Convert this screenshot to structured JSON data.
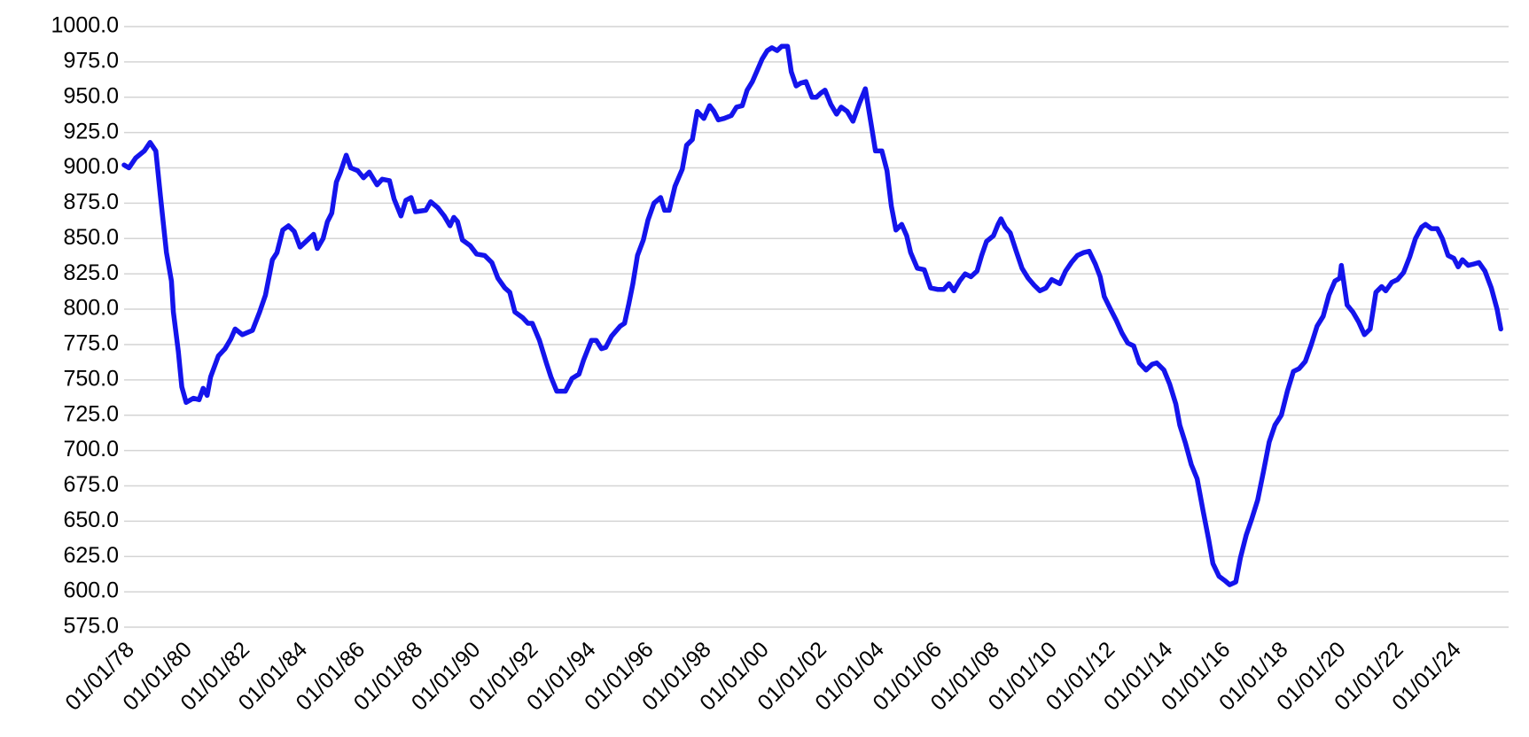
{
  "chart_data": {
    "type": "line",
    "x": [
      1978.0,
      1978.17,
      1978.4,
      1978.7,
      1978.9,
      1979.1,
      1979.26,
      1979.47,
      1979.64,
      1979.71,
      1979.88,
      1980.0,
      1980.15,
      1980.4,
      1980.6,
      1980.74,
      1980.88,
      1981.0,
      1981.27,
      1981.5,
      1981.7,
      1981.85,
      1982.1,
      1982.45,
      1982.7,
      1982.9,
      1983.14,
      1983.3,
      1983.5,
      1983.7,
      1983.9,
      1984.1,
      1984.36,
      1984.57,
      1984.7,
      1984.9,
      1985.05,
      1985.2,
      1985.36,
      1985.5,
      1985.7,
      1985.86,
      1986.1,
      1986.3,
      1986.5,
      1986.77,
      1986.95,
      1987.2,
      1987.36,
      1987.6,
      1987.77,
      1987.95,
      1988.1,
      1988.46,
      1988.63,
      1988.87,
      1989.1,
      1989.3,
      1989.43,
      1989.56,
      1989.73,
      1990.0,
      1990.22,
      1990.5,
      1990.75,
      1990.96,
      1991.2,
      1991.37,
      1991.55,
      1991.82,
      1992.0,
      1992.15,
      1992.4,
      1992.64,
      1992.8,
      1993.0,
      1993.3,
      1993.53,
      1993.77,
      1993.93,
      1994.2,
      1994.37,
      1994.55,
      1994.7,
      1994.9,
      1995.2,
      1995.35,
      1995.5,
      1995.64,
      1995.8,
      1996.0,
      1996.16,
      1996.37,
      1996.6,
      1996.74,
      1996.9,
      1997.1,
      1997.35,
      1997.5,
      1997.7,
      1997.87,
      1998.1,
      1998.3,
      1998.45,
      1998.6,
      1998.8,
      1999.05,
      1999.23,
      1999.43,
      1999.6,
      1999.78,
      1999.95,
      2000.12,
      2000.3,
      2000.46,
      2000.64,
      2000.8,
      2001.0,
      2001.13,
      2001.3,
      2001.46,
      2001.64,
      2001.85,
      2002.0,
      2002.16,
      2002.3,
      2002.5,
      2002.7,
      2002.86,
      2003.07,
      2003.27,
      2003.5,
      2003.7,
      2003.9,
      2004.05,
      2004.27,
      2004.45,
      2004.6,
      2004.76,
      2004.96,
      2005.13,
      2005.27,
      2005.5,
      2005.74,
      2005.96,
      2006.2,
      2006.42,
      2006.6,
      2006.77,
      2006.97,
      2007.16,
      2007.36,
      2007.57,
      2007.73,
      2007.9,
      2008.14,
      2008.3,
      2008.4,
      2008.55,
      2008.72,
      2008.93,
      2009.13,
      2009.34,
      2009.55,
      2009.75,
      2009.96,
      2010.16,
      2010.44,
      2010.64,
      2010.84,
      2011.05,
      2011.26,
      2011.46,
      2011.67,
      2011.84,
      2011.98,
      2012.2,
      2012.4,
      2012.6,
      2012.8,
      2013.0,
      2013.2,
      2013.43,
      2013.64,
      2013.8,
      2014.05,
      2014.25,
      2014.46,
      2014.6,
      2014.8,
      2015.0,
      2015.2,
      2015.4,
      2015.6,
      2015.75,
      2015.96,
      2016.16,
      2016.33,
      2016.54,
      2016.7,
      2016.9,
      2017.1,
      2017.3,
      2017.5,
      2017.7,
      2017.9,
      2018.12,
      2018.33,
      2018.54,
      2018.74,
      2018.95,
      2019.16,
      2019.36,
      2019.57,
      2019.77,
      2019.98,
      2020.15,
      2020.2,
      2020.4,
      2020.6,
      2020.8,
      2021.0,
      2021.2,
      2021.4,
      2021.6,
      2021.74,
      2021.95,
      2022.15,
      2022.36,
      2022.57,
      2022.77,
      2022.98,
      2023.12,
      2023.32,
      2023.53,
      2023.7,
      2023.9,
      2024.1,
      2024.25,
      2024.4,
      2024.6,
      2024.8,
      2024.97,
      2025.18,
      2025.4,
      2025.6,
      2025.73
    ],
    "series": [
      {
        "color": "#1414ec",
        "values": [
          902,
          900,
          907,
          912,
          918,
          912,
          880,
          840,
          820,
          798,
          770,
          745,
          734,
          737,
          736,
          744,
          739,
          752,
          767,
          772,
          779,
          786,
          782,
          785,
          798,
          810,
          835,
          840,
          856,
          859,
          855,
          844,
          849,
          853,
          843,
          850,
          862,
          868,
          890,
          897,
          909,
          900,
          898,
          893,
          897,
          888,
          892,
          891,
          878,
          866,
          877,
          879,
          869,
          870,
          876,
          872,
          866,
          859,
          865,
          862,
          849,
          845,
          839,
          838,
          833,
          822,
          815,
          812,
          798,
          794,
          790,
          790,
          778,
          762,
          752,
          742,
          742,
          751,
          754,
          764,
          778,
          778,
          772,
          773,
          781,
          788,
          790,
          804,
          818,
          838,
          849,
          863,
          875,
          879,
          870,
          870,
          887,
          899,
          916,
          920,
          940,
          935,
          944,
          940,
          934,
          935,
          937,
          943,
          944,
          955,
          961,
          969,
          977,
          983,
          985,
          983,
          986,
          986,
          968,
          958,
          960,
          961,
          950,
          950,
          953,
          955,
          945,
          938,
          943,
          940,
          933,
          946,
          956,
          931,
          912,
          912,
          898,
          873,
          856,
          860,
          852,
          840,
          829,
          828,
          815,
          814,
          814,
          818,
          813,
          820,
          825,
          823,
          827,
          838,
          848,
          852,
          860,
          864,
          858,
          854,
          841,
          829,
          822,
          817,
          813,
          815,
          821,
          818,
          827,
          833,
          838,
          840,
          841,
          832,
          823,
          809,
          800,
          792,
          783,
          776,
          774,
          762,
          757,
          761,
          762,
          757,
          747,
          733,
          718,
          705,
          690,
          680,
          658,
          637,
          620,
          611,
          608,
          605,
          607,
          624,
          640,
          652,
          665,
          685,
          706,
          718,
          725,
          742,
          756,
          758,
          763,
          775,
          788,
          795,
          810,
          820,
          822,
          831,
          803,
          798,
          791,
          782,
          786,
          812,
          816,
          813,
          819,
          821,
          826,
          837,
          850,
          858,
          860,
          857,
          857,
          850,
          838,
          836,
          830,
          835,
          831,
          832,
          833,
          827,
          815,
          800,
          786
        ]
      }
    ],
    "xlim": [
      1978,
      2026
    ],
    "xticks": [
      {
        "value": 1978,
        "label": "01/01/78"
      },
      {
        "value": 1980,
        "label": "01/01/80"
      },
      {
        "value": 1982,
        "label": "01/01/82"
      },
      {
        "value": 1984,
        "label": "01/01/84"
      },
      {
        "value": 1986,
        "label": "01/01/86"
      },
      {
        "value": 1988,
        "label": "01/01/88"
      },
      {
        "value": 1990,
        "label": "01/01/90"
      },
      {
        "value": 1992,
        "label": "01/01/92"
      },
      {
        "value": 1994,
        "label": "01/01/94"
      },
      {
        "value": 1996,
        "label": "01/01/96"
      },
      {
        "value": 1998,
        "label": "01/01/98"
      },
      {
        "value": 2000,
        "label": "01/01/00"
      },
      {
        "value": 2002,
        "label": "01/01/02"
      },
      {
        "value": 2004,
        "label": "01/01/04"
      },
      {
        "value": 2006,
        "label": "01/01/06"
      },
      {
        "value": 2008,
        "label": "01/01/08"
      },
      {
        "value": 2010,
        "label": "01/01/10"
      },
      {
        "value": 2012,
        "label": "01/01/12"
      },
      {
        "value": 2014,
        "label": "01/01/14"
      },
      {
        "value": 2016,
        "label": "01/01/16"
      },
      {
        "value": 2018,
        "label": "01/01/18"
      },
      {
        "value": 2020,
        "label": "01/01/20"
      },
      {
        "value": 2022,
        "label": "01/01/22"
      },
      {
        "value": 2024,
        "label": "01/01/24"
      }
    ],
    "ylim": [
      575,
      1000
    ],
    "yticks": [
      {
        "value": 575,
        "label": "575.0"
      },
      {
        "value": 600,
        "label": "600.0"
      },
      {
        "value": 625,
        "label": "625.0"
      },
      {
        "value": 650,
        "label": "650.0"
      },
      {
        "value": 675,
        "label": "675.0"
      },
      {
        "value": 700,
        "label": "700.0"
      },
      {
        "value": 725,
        "label": "725.0"
      },
      {
        "value": 750,
        "label": "750.0"
      },
      {
        "value": 775,
        "label": "775.0"
      },
      {
        "value": 800,
        "label": "800.0"
      },
      {
        "value": 825,
        "label": "825.0"
      },
      {
        "value": 850,
        "label": "850.0"
      },
      {
        "value": 875,
        "label": "875.0"
      },
      {
        "value": 900,
        "label": "900.0"
      },
      {
        "value": 925,
        "label": "925.0"
      },
      {
        "value": 950,
        "label": "950.0"
      },
      {
        "value": 975,
        "label": "975.0"
      },
      {
        "value": 1000,
        "label": "1000.0"
      }
    ],
    "grid": true
  }
}
